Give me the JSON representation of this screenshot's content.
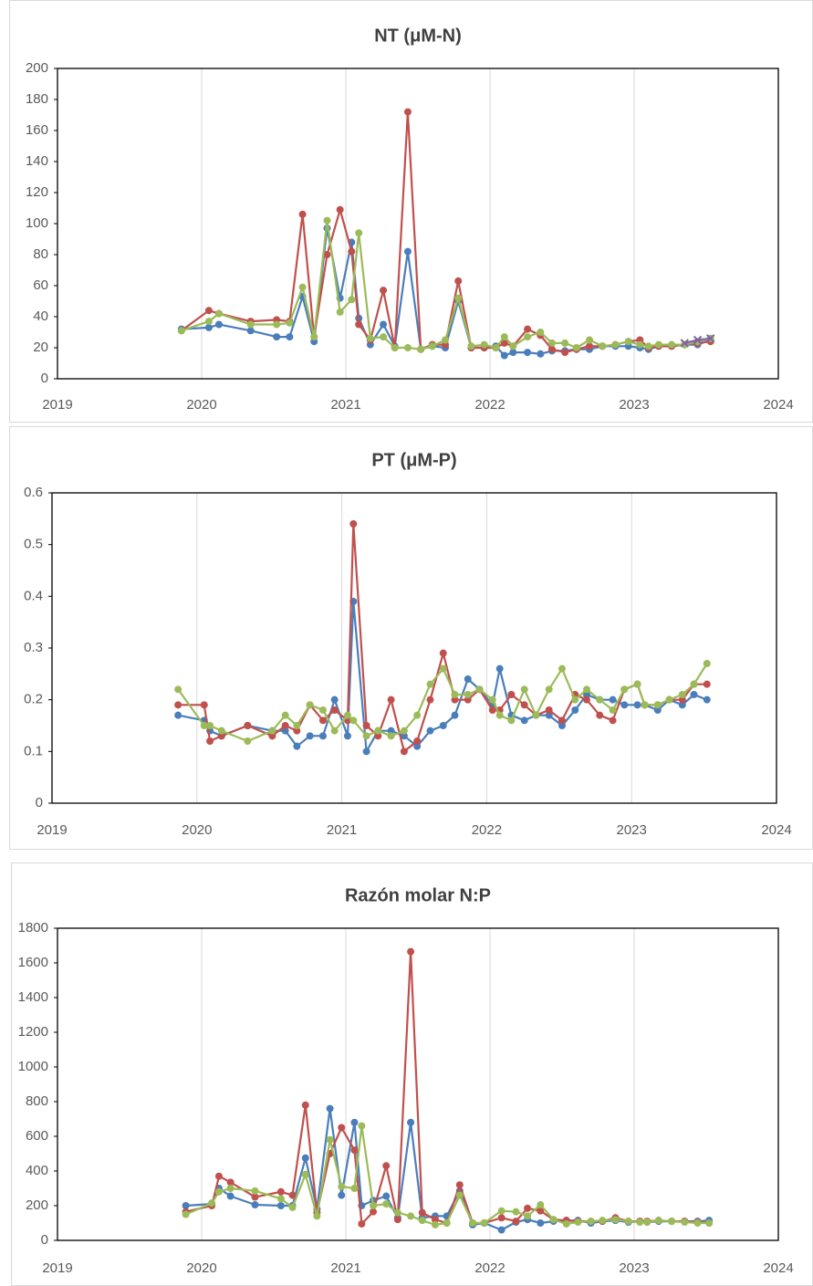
{
  "chart_data": [
    {
      "type": "line",
      "title": "NT (μM-N)",
      "x": [
        2019.86,
        2020.05,
        2020.12,
        2020.34,
        2020.52,
        2020.61,
        2020.7,
        2020.78,
        2020.87,
        2020.96,
        2021.04,
        2021.09,
        2021.17,
        2021.26,
        2021.34,
        2021.43,
        2021.52,
        2021.6,
        2021.69,
        2021.78,
        2021.87,
        2021.96,
        2022.04,
        2022.1,
        2022.16,
        2022.26,
        2022.35,
        2022.43,
        2022.52,
        2022.6,
        2022.69,
        2022.78,
        2022.87,
        2022.96,
        2023.04,
        2023.1,
        2023.17,
        2023.26,
        2023.35,
        2023.44,
        2023.53
      ],
      "series": [
        {
          "color": "#4a7ebb",
          "values": [
            32,
            33,
            35,
            31,
            27,
            27,
            53,
            24,
            97,
            52,
            88,
            39,
            22,
            35,
            21,
            82,
            19,
            21,
            20,
            50,
            20,
            20,
            21,
            15,
            17,
            17,
            16,
            18,
            18,
            19,
            19,
            21,
            21,
            21,
            20,
            19,
            21,
            21,
            22,
            22,
            25
          ]
        },
        {
          "color": "#c0504d",
          "values": [
            31,
            44,
            42,
            37,
            38,
            37,
            106,
            27,
            80,
            109,
            82,
            35,
            25,
            57,
            20,
            172,
            19,
            22,
            22,
            63,
            20,
            20,
            20,
            23,
            21,
            32,
            28,
            19,
            17,
            19,
            21,
            21,
            22,
            24,
            25,
            20,
            21,
            21,
            22,
            23,
            24
          ]
        },
        {
          "color": "#9bbb59",
          "values": [
            31,
            37,
            42,
            35,
            35,
            36,
            59,
            27,
            102,
            43,
            51,
            94,
            26,
            27,
            20,
            20,
            19,
            21,
            25,
            52,
            21,
            22,
            20,
            27,
            21,
            27,
            30,
            23,
            23,
            20,
            25,
            21,
            22,
            24,
            22,
            21,
            22,
            22,
            22,
            24,
            26
          ]
        },
        {
          "color": "#8064a2",
          "marker": "x",
          "values": [
            null,
            null,
            null,
            null,
            null,
            null,
            null,
            null,
            null,
            null,
            null,
            null,
            null,
            null,
            null,
            null,
            null,
            null,
            null,
            null,
            null,
            null,
            null,
            null,
            null,
            null,
            null,
            null,
            null,
            null,
            null,
            null,
            null,
            null,
            null,
            null,
            null,
            null,
            23,
            25,
            26
          ]
        }
      ],
      "xlim": [
        2019,
        2024
      ],
      "xticks": [
        2019,
        2020,
        2021,
        2022,
        2023,
        2024
      ],
      "ylim": [
        0,
        200
      ],
      "yticks": [
        0,
        20,
        40,
        60,
        80,
        100,
        120,
        140,
        160,
        180,
        200
      ],
      "grid": "x"
    },
    {
      "type": "line",
      "title": "PT (μM-P)",
      "x": [
        2019.87,
        2020.05,
        2020.09,
        2020.17,
        2020.35,
        2020.52,
        2020.61,
        2020.69,
        2020.78,
        2020.87,
        2020.95,
        2021.04,
        2021.08,
        2021.17,
        2021.25,
        2021.34,
        2021.43,
        2021.52,
        2021.61,
        2021.7,
        2021.78,
        2021.87,
        2021.95,
        2022.04,
        2022.09,
        2022.17,
        2022.26,
        2022.34,
        2022.43,
        2022.52,
        2022.61,
        2022.69,
        2022.78,
        2022.87,
        2022.95,
        2023.04,
        2023.09,
        2023.18,
        2023.26,
        2023.35,
        2023.43,
        2023.52
      ],
      "series": [
        {
          "color": "#4a7ebb",
          "values": [
            0.17,
            0.16,
            0.14,
            0.13,
            0.15,
            0.14,
            0.14,
            0.11,
            0.13,
            0.13,
            0.2,
            0.13,
            0.39,
            0.1,
            0.14,
            0.14,
            0.13,
            0.11,
            0.14,
            0.15,
            0.17,
            0.24,
            0.22,
            0.19,
            0.26,
            0.17,
            0.16,
            0.17,
            0.17,
            0.15,
            0.18,
            0.21,
            0.2,
            0.2,
            0.19,
            0.19,
            0.19,
            0.18,
            0.2,
            0.19,
            0.21,
            0.2
          ]
        },
        {
          "color": "#c0504d",
          "values": [
            0.19,
            0.19,
            0.12,
            0.13,
            0.15,
            0.13,
            0.15,
            0.14,
            0.19,
            0.16,
            0.18,
            0.16,
            0.54,
            0.15,
            0.13,
            0.2,
            0.1,
            0.12,
            0.2,
            0.29,
            0.2,
            0.2,
            0.22,
            0.18,
            0.18,
            0.21,
            0.19,
            0.17,
            0.18,
            0.16,
            0.21,
            0.2,
            0.17,
            0.16,
            0.22,
            0.23,
            0.19,
            0.19,
            0.2,
            0.2,
            0.23,
            0.23
          ]
        },
        {
          "color": "#9bbb59",
          "values": [
            0.22,
            0.15,
            0.15,
            0.14,
            0.12,
            0.14,
            0.17,
            0.15,
            0.19,
            0.18,
            0.14,
            0.17,
            0.16,
            0.13,
            0.14,
            0.13,
            0.14,
            0.17,
            0.23,
            0.26,
            0.21,
            0.21,
            0.22,
            0.2,
            0.17,
            0.16,
            0.22,
            0.17,
            0.22,
            0.26,
            0.2,
            0.22,
            0.2,
            0.18,
            0.22,
            0.23,
            0.19,
            0.19,
            0.2,
            0.21,
            0.23,
            0.27
          ]
        }
      ],
      "xlim": [
        2019,
        2024
      ],
      "xticks": [
        2019,
        2020,
        2021,
        2022,
        2023,
        2024
      ],
      "ylim": [
        0,
        0.6
      ],
      "yticks": [
        0,
        0.1,
        0.2,
        0.3,
        0.4,
        0.5,
        0.6
      ],
      "grid": "x"
    },
    {
      "type": "line",
      "title": "Razón molar N:P",
      "x": [
        2019.89,
        2020.07,
        2020.12,
        2020.2,
        2020.37,
        2020.55,
        2020.63,
        2020.72,
        2020.8,
        2020.89,
        2020.97,
        2021.06,
        2021.11,
        2021.19,
        2021.28,
        2021.36,
        2021.45,
        2021.53,
        2021.62,
        2021.7,
        2021.79,
        2021.88,
        2021.96,
        2022.08,
        2022.18,
        2022.26,
        2022.35,
        2022.44,
        2022.53,
        2022.61,
        2022.7,
        2022.78,
        2022.87,
        2022.96,
        2023.04,
        2023.09,
        2023.17,
        2023.26,
        2023.35,
        2023.44,
        2023.52
      ],
      "series": [
        {
          "color": "#4a7ebb",
          "values": [
            200,
            210,
            300,
            255,
            205,
            200,
            200,
            475,
            180,
            760,
            260,
            680,
            200,
            230,
            255,
            130,
            680,
            130,
            140,
            140,
            285,
            90,
            100,
            60,
            105,
            120,
            100,
            110,
            115,
            115,
            100,
            110,
            115,
            105,
            110,
            105,
            110,
            110,
            110,
            110,
            115
          ]
        },
        {
          "color": "#c0504d",
          "values": [
            165,
            200,
            370,
            335,
            250,
            280,
            260,
            780,
            160,
            500,
            650,
            520,
            95,
            165,
            430,
            120,
            1665,
            160,
            120,
            100,
            320,
            100,
            100,
            130,
            110,
            185,
            170,
            120,
            115,
            110,
            110,
            110,
            130,
            110,
            110,
            110,
            115,
            110,
            110,
            105,
            100
          ]
        },
        {
          "color": "#9bbb59",
          "values": [
            150,
            215,
            280,
            300,
            285,
            240,
            190,
            380,
            140,
            580,
            310,
            300,
            660,
            200,
            210,
            160,
            140,
            115,
            90,
            100,
            260,
            100,
            100,
            170,
            165,
            140,
            205,
            120,
            95,
            105,
            110,
            115,
            120,
            110,
            105,
            105,
            115,
            110,
            105,
            100,
            100
          ]
        }
      ],
      "xlim": [
        2019,
        2024
      ],
      "xticks": [
        2019,
        2020,
        2021,
        2022,
        2023,
        2024
      ],
      "ylim": [
        0,
        1800
      ],
      "yticks": [
        0,
        200,
        400,
        600,
        800,
        1000,
        1200,
        1400,
        1600,
        1800
      ],
      "grid": "x"
    }
  ]
}
